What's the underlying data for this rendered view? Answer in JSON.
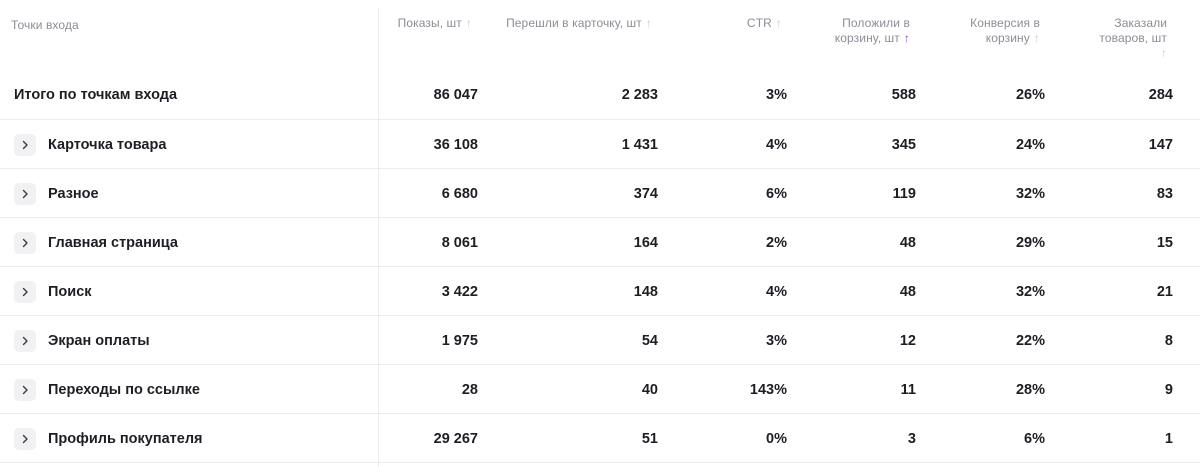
{
  "columns": {
    "entry": "Точки входа",
    "views": "Показы, шт",
    "clicks": "Перешли в карточку, шт",
    "ctr": "CTR",
    "cart": "Положили в корзину, шт",
    "conv": "Конверсия в корзину",
    "orders": "Заказали товаров, шт"
  },
  "sort_active_column": "cart",
  "colors": {
    "sort_active": "#8a3ce0",
    "sort_inactive": "#c9c7cf",
    "header_text": "#8e8c95",
    "body_text": "#1f1d24"
  },
  "total": {
    "label": "Итого по точкам входа",
    "views": "86 047",
    "clicks": "2 283",
    "ctr": "3%",
    "cart": "588",
    "conv": "26%",
    "orders": "284"
  },
  "rows": [
    {
      "name": "Карточка товара",
      "views": "36 108",
      "clicks": "1 431",
      "ctr": "4%",
      "cart": "345",
      "conv": "24%",
      "orders": "147"
    },
    {
      "name": "Разное",
      "views": "6 680",
      "clicks": "374",
      "ctr": "6%",
      "cart": "119",
      "conv": "32%",
      "orders": "83"
    },
    {
      "name": "Главная страница",
      "views": "8 061",
      "clicks": "164",
      "ctr": "2%",
      "cart": "48",
      "conv": "29%",
      "orders": "15"
    },
    {
      "name": "Поиск",
      "views": "3 422",
      "clicks": "148",
      "ctr": "4%",
      "cart": "48",
      "conv": "32%",
      "orders": "21"
    },
    {
      "name": "Экран оплаты",
      "views": "1 975",
      "clicks": "54",
      "ctr": "3%",
      "cart": "12",
      "conv": "22%",
      "orders": "8"
    },
    {
      "name": "Переходы по ссылке",
      "views": "28",
      "clicks": "40",
      "ctr": "143%",
      "cart": "11",
      "conv": "28%",
      "orders": "9"
    },
    {
      "name": "Профиль покупателя",
      "views": "29 267",
      "clicks": "51",
      "ctr": "0%",
      "cart": "3",
      "conv": "6%",
      "orders": "1"
    }
  ]
}
